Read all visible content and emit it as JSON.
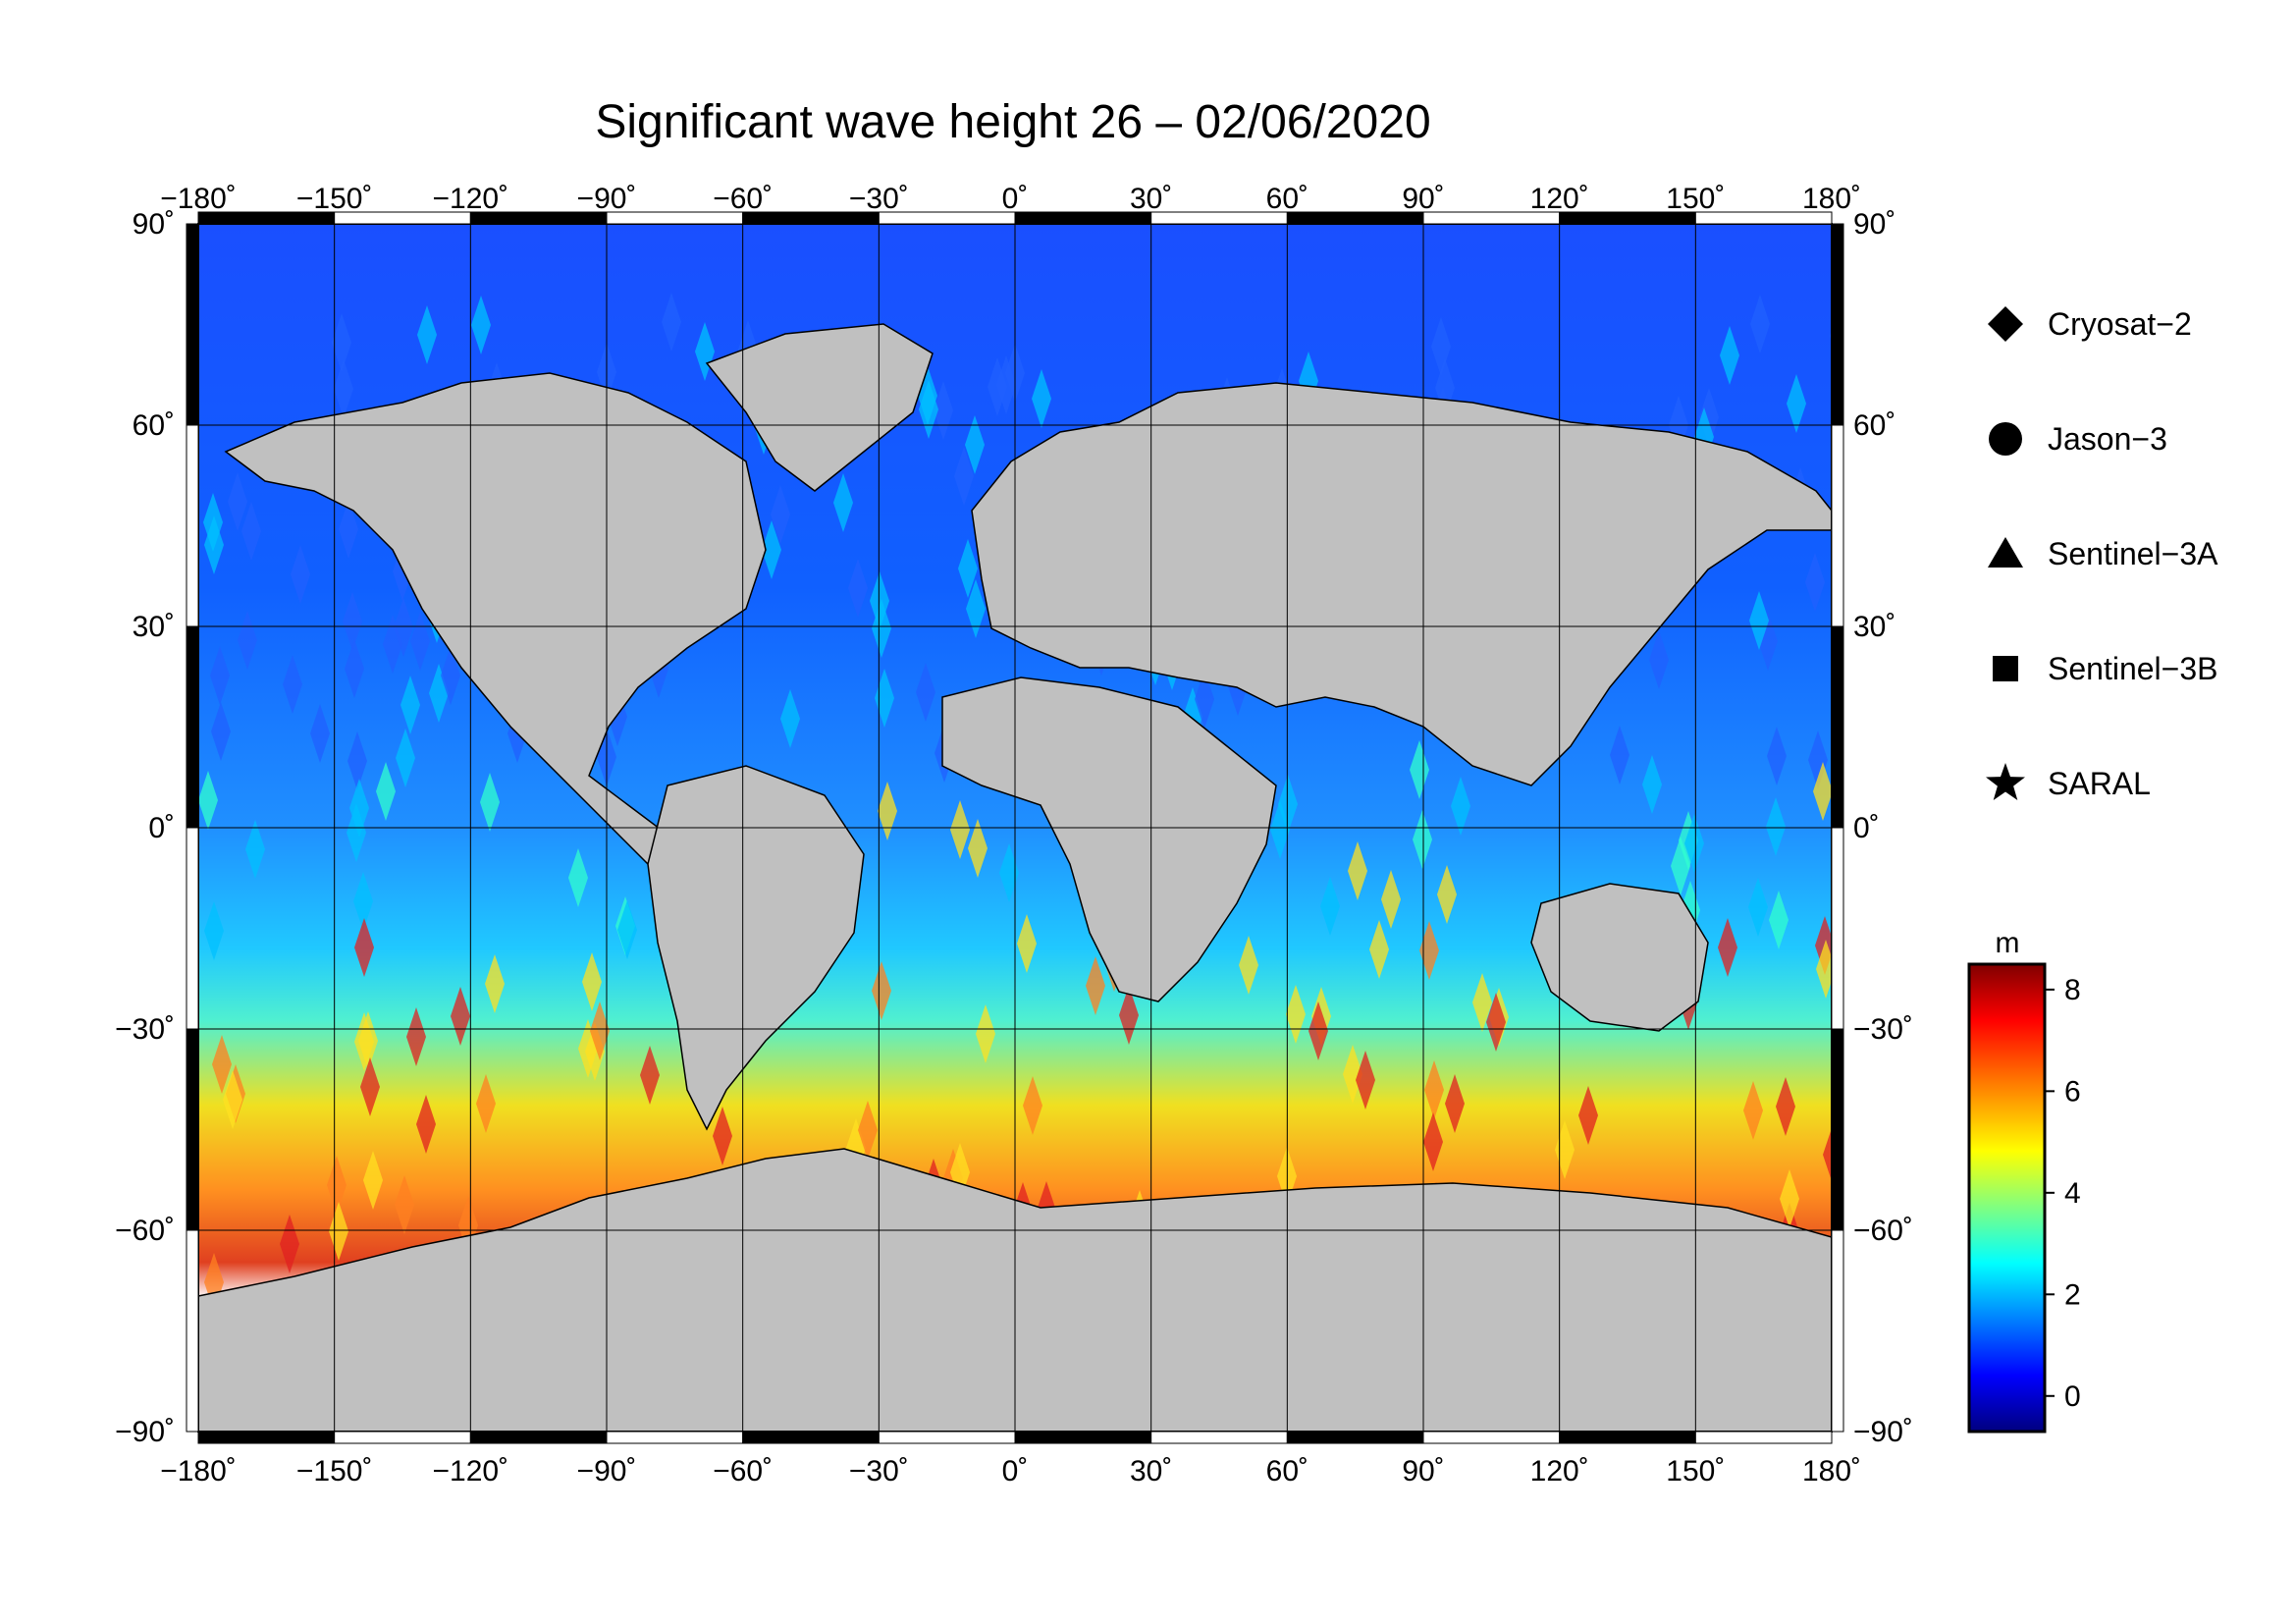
{
  "title": "Significant wave height 26 – 02/06/2020",
  "lon_labels": [
    "−180˚",
    "−150˚",
    "−120˚",
    "−90˚",
    "−60˚",
    "−30˚",
    "0˚",
    "30˚",
    "60˚",
    "90˚",
    "120˚",
    "150˚",
    "180˚"
  ],
  "lat_labels": [
    "90˚",
    "60˚",
    "30˚",
    "0˚",
    "−30˚",
    "−60˚",
    "−90˚"
  ],
  "legend": [
    {
      "label": "Cryosat−2",
      "icon": "diamond"
    },
    {
      "label": "Jason−3",
      "icon": "circle"
    },
    {
      "label": "Sentinel−3A",
      "icon": "triangle"
    },
    {
      "label": "Sentinel−3B",
      "icon": "square"
    },
    {
      "label": "SARAL",
      "icon": "star"
    }
  ],
  "colorbar": {
    "unit": "m",
    "ticks": [
      "8",
      "6",
      "4",
      "2",
      "0"
    ],
    "colors": [
      "#000080",
      "#0000ff",
      "#0080ff",
      "#00ffff",
      "#80ff80",
      "#ffff00",
      "#ff8000",
      "#ff0000",
      "#800000"
    ]
  },
  "map_colors": {
    "land": "#c0c0c0",
    "ice": "#ffffff",
    "grid": "#000000"
  }
}
